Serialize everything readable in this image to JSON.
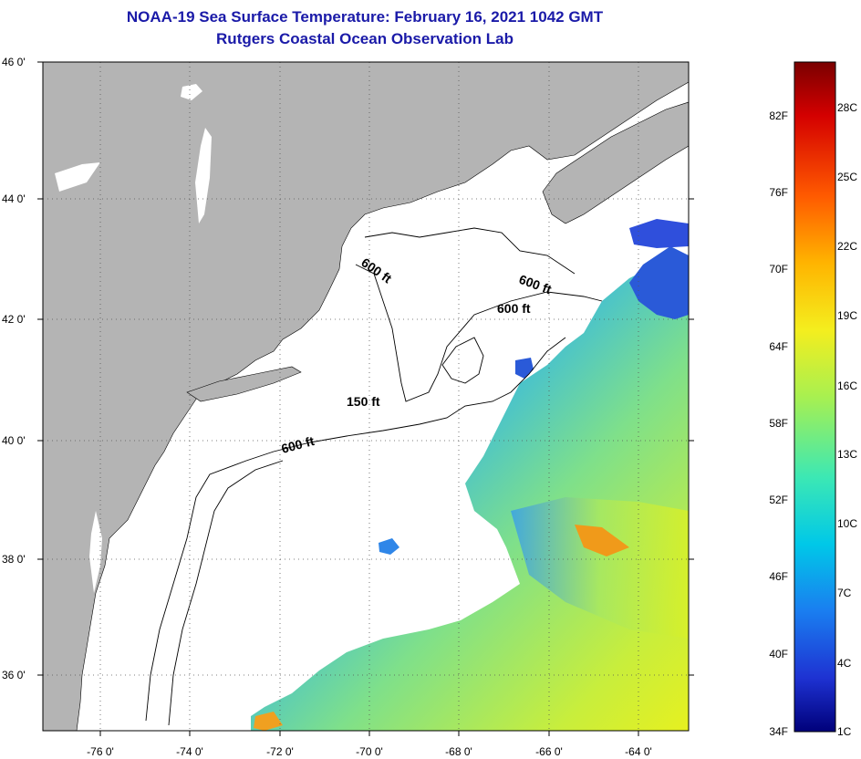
{
  "header": {
    "title": "NOAA-19 Sea Surface Temperature:  February 16, 2021 1042 GMT",
    "subtitle": "Rutgers Coastal Ocean Observation Lab"
  },
  "map": {
    "lat_labels": [
      "46 0'",
      "44 0'",
      "42 0'",
      "40 0'",
      "38 0'",
      "36 0'"
    ],
    "lon_labels": [
      "-76 0'",
      "-74 0'",
      "-72 0'",
      "-70 0'",
      "-68 0'",
      "-66 0'",
      "-64 0'"
    ],
    "contour_labels": [
      "600 ft",
      "600 ft",
      "600 ft",
      "150 ft",
      "600 ft"
    ],
    "colors": {
      "land": "#b4b4b4",
      "ocean_no_data": "#ffffff",
      "grid": "#555555"
    }
  },
  "colorbar": {
    "fahrenheit_labels": [
      "82F",
      "76F",
      "70F",
      "64F",
      "58F",
      "52F",
      "46F",
      "40F",
      "34F"
    ],
    "celsius_labels": [
      "28C",
      "25C",
      "22C",
      "19C",
      "16C",
      "13C",
      "10C",
      "7C",
      "4C",
      "1C"
    ],
    "gradient": [
      "#7a0000",
      "#d40000",
      "#ff5a00",
      "#ffb400",
      "#f4ee1e",
      "#a8f050",
      "#3ce8b4",
      "#00c8e8",
      "#1a7ef0",
      "#1e32d2",
      "#00007a"
    ]
  }
}
